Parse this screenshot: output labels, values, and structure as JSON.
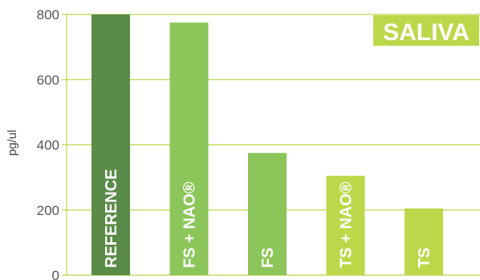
{
  "chart_data": {
    "type": "bar",
    "title": "",
    "badge": "SALIVA",
    "xlabel": "",
    "ylabel": "pg/ul",
    "ylim": [
      0,
      800
    ],
    "yticks": [
      "0",
      "200",
      "400",
      "600",
      "800"
    ],
    "grid": true,
    "categories": [
      "REFERENCE",
      "FS + NAO®",
      "FS",
      "TS + NAO®",
      "TS"
    ],
    "values": [
      800,
      775,
      375,
      305,
      205
    ],
    "colors": [
      "#5b8b48",
      "#8cc55a",
      "#8cc55a",
      "#bcd84a",
      "#bcd84a"
    ],
    "grid_color": "#bcd84a",
    "badge_color": "#bcd84a"
  }
}
